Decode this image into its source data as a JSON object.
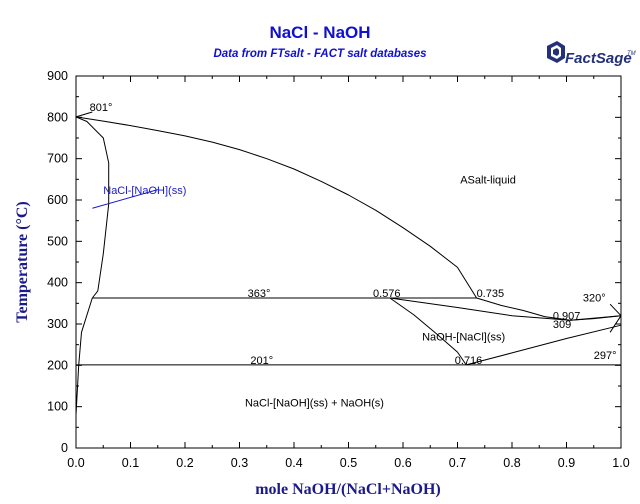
{
  "chart_data": {
    "type": "line",
    "title": "NaCl - NaOH",
    "subtitle": "Data from FTsalt - FACT salt databases",
    "xlabel": "mole NaOH/(NaCl+NaOH)",
    "ylabel": "Temperature (°C)",
    "xlim": [
      0,
      1
    ],
    "ylim": [
      0,
      900
    ],
    "x_ticks": [
      "0.0",
      "0.1",
      "0.2",
      "0.3",
      "0.4",
      "0.5",
      "0.6",
      "0.7",
      "0.8",
      "0.9",
      "1.0"
    ],
    "y_ticks": [
      "0",
      "100",
      "200",
      "300",
      "400",
      "500",
      "600",
      "700",
      "800",
      "900"
    ],
    "grid": false,
    "series": [
      {
        "x": [
          0,
          0.05,
          0.1,
          0.15,
          0.2,
          0.25,
          0.3,
          0.35,
          0.4,
          0.45,
          0.5,
          0.55,
          0.6,
          0.65,
          0.7,
          0.735,
          0.78,
          0.82,
          0.86,
          0.907
        ],
        "y": [
          801,
          791,
          780,
          768,
          755,
          740,
          722,
          700,
          675,
          645,
          612,
          575,
          533,
          488,
          437,
          363,
          345,
          333,
          318,
          309
        ]
      },
      {
        "x": [
          0.907,
          0.95,
          1.0
        ],
        "y": [
          309,
          313,
          320
        ]
      },
      {
        "x": [
          0,
          0.02,
          0.05,
          0.06,
          0.06,
          0.05,
          0.04,
          0.03
        ],
        "y": [
          801,
          790,
          750,
          690,
          590,
          470,
          380,
          363
        ]
      },
      {
        "x": [
          0.03,
          0.01,
          0.005,
          0
        ],
        "y": [
          363,
          280,
          200,
          80
        ]
      },
      {
        "x": [
          0.576,
          0.62,
          0.66,
          0.7,
          0.716
        ],
        "y": [
          363,
          322,
          278,
          232,
          201
        ]
      },
      {
        "x": [
          0.716,
          0.8,
          0.9,
          1.0
        ],
        "y": [
          201,
          230,
          265,
          297
        ]
      },
      {
        "x": [
          0.576,
          0.7,
          0.8,
          0.907
        ],
        "y": [
          363,
          340,
          320,
          309
        ]
      },
      {
        "x": [
          0.907,
          1.0
        ],
        "y": [
          309,
          320
        ]
      },
      {
        "x": [
          0.98,
          1.0
        ],
        "y": [
          348,
          320
        ]
      },
      {
        "x": [
          1.0,
          0.98
        ],
        "y": [
          320,
          280
        ]
      },
      {
        "x": [
          0.03,
          0.735
        ],
        "y": [
          363,
          363
        ]
      },
      {
        "x": [
          0,
          1
        ],
        "y": [
          201,
          201
        ]
      },
      {
        "x": [
          0,
          0.03
        ],
        "y": [
          801,
          813
        ]
      }
    ],
    "annotations": [
      {
        "text": "801°",
        "x": 0.025,
        "y": 815
      },
      {
        "text": "363°",
        "x": 0.315,
        "y": 365
      },
      {
        "text": "201°",
        "x": 0.32,
        "y": 203
      },
      {
        "text": "0.576",
        "x": 0.545,
        "y": 365
      },
      {
        "text": "0.735",
        "x": 0.735,
        "y": 365
      },
      {
        "text": "0.907",
        "x": 0.875,
        "y": 311
      },
      {
        "text": "0.716",
        "x": 0.695,
        "y": 203
      },
      {
        "text": "309",
        "x": 0.875,
        "y": 290
      },
      {
        "text": "320°",
        "x": 0.93,
        "y": 355
      },
      {
        "text": "297°",
        "x": 0.95,
        "y": 215
      }
    ],
    "region_labels": [
      {
        "text": "ASalt-liquid",
        "x": 0.705,
        "y": 640,
        "color": "#000000"
      },
      {
        "text": "NaCl-[NaOH](ss)",
        "x": 0.05,
        "y": 615,
        "color": "#1a1acc"
      },
      {
        "text": "NaOH-[NaCl](ss)",
        "x": 0.635,
        "y": 260,
        "color": "#000000"
      },
      {
        "text": "NaCl-[NaOH](ss) + NaOH(s)",
        "x": 0.31,
        "y": 100,
        "color": "#000000"
      }
    ],
    "pointer_line": {
      "x": [
        0.03,
        0.15
      ],
      "y": [
        580,
        625
      ],
      "color": "#1a1acc"
    }
  },
  "logo": {
    "text": "FactSage",
    "mark": "TM"
  }
}
